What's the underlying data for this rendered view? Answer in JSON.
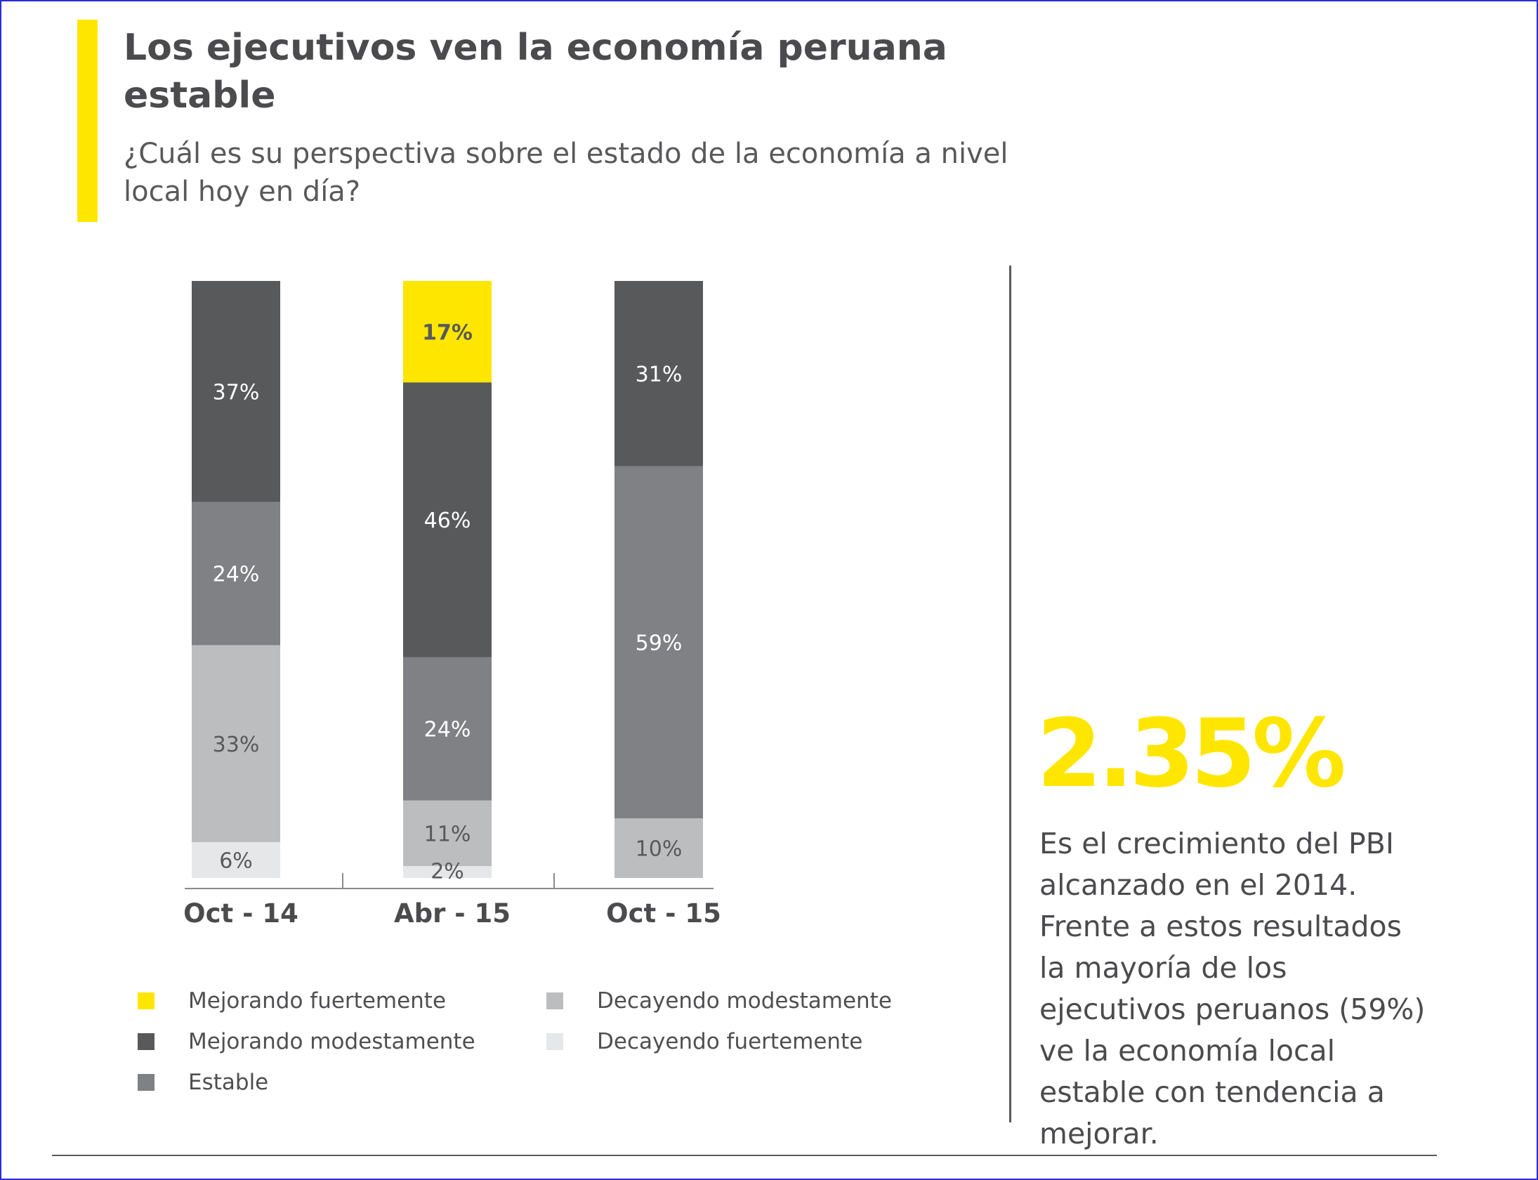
{
  "header": {
    "title": "Los ejecutivos ven la economía peruana estable",
    "subtitle": "¿Cuál es su perspectiva sobre el estado de la economía a nivel local hoy en día?"
  },
  "colors": {
    "accent": "#ffe600",
    "mejorando_fuertemente": "#ffe600",
    "mejorando_modestamente": "#58595b",
    "estable": "#808184",
    "decayendo_modestamente": "#bcbdbf",
    "decayendo_fuertemente": "#e6e7e8"
  },
  "chart_data": {
    "type": "bar",
    "stacked": true,
    "categories": [
      "Oct - 14",
      "Abr - 15",
      "Oct - 15"
    ],
    "series": [
      {
        "name": "Mejorando fuertemente",
        "key": "mejorando_fuertemente",
        "values": [
          0,
          17,
          0
        ],
        "labels": [
          "",
          "17%",
          ""
        ]
      },
      {
        "name": "Mejorando modestamente",
        "key": "mejorando_modestamente",
        "values": [
          37,
          46,
          31
        ],
        "labels": [
          "37%",
          "46%",
          "31%"
        ]
      },
      {
        "name": "Estable",
        "key": "estable",
        "values": [
          24,
          24,
          59
        ],
        "labels": [
          "24%",
          "24%",
          "59%"
        ]
      },
      {
        "name": "Decayendo modestamente",
        "key": "decayendo_modestamente",
        "values": [
          33,
          11,
          10
        ],
        "labels": [
          "33%",
          "11%",
          "10%"
        ]
      },
      {
        "name": "Decayendo fuertemente",
        "key": "decayendo_fuertemente",
        "values": [
          6,
          2,
          0
        ],
        "labels": [
          "6%",
          "2%",
          ""
        ]
      }
    ],
    "ylim": [
      0,
      100
    ],
    "grid": false,
    "legend_position": "bottom"
  },
  "legend": [
    {
      "label": "Mejorando fuertemente",
      "key": "mejorando_fuertemente"
    },
    {
      "label": "Mejorando modestamente",
      "key": "mejorando_modestamente"
    },
    {
      "label": "Estable",
      "key": "estable"
    },
    {
      "label": "Decayendo modestamente",
      "key": "decayendo_modestamente"
    },
    {
      "label": "Decayendo fuertemente",
      "key": "decayendo_fuertemente"
    }
  ],
  "highlight": {
    "value": "2.35%",
    "text": "Es el crecimiento del PBI alcanzado en el 2014. Frente a estos resultados la mayoría de los ejecutivos peruanos (59%) ve la economía local estable con tendencia a mejorar."
  }
}
